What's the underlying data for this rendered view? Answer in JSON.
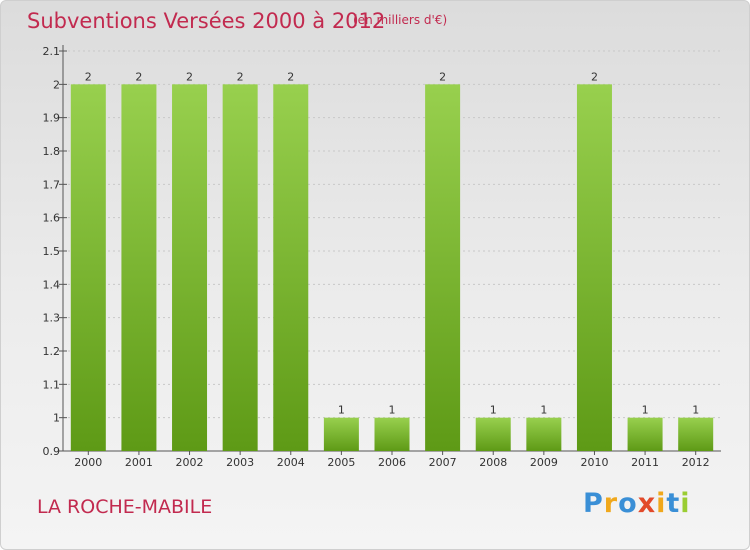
{
  "title": "Subventions Versées 2000 à 2012",
  "subtitle": "(en milliers d'€)",
  "commune": "LA ROCHE-MABILE",
  "brand": {
    "letters": [
      "P",
      "r",
      "o",
      "x",
      "i",
      "t",
      "i"
    ],
    "colors": [
      "#3a8fd6",
      "#f0a81c",
      "#3a8fd6",
      "#e24a2a",
      "#f0a81c",
      "#3a8fd6",
      "#9acd32"
    ]
  },
  "colors": {
    "bar_top": "#98d04e",
    "bar_bottom": "#5e9a16",
    "title": "#c22a4f",
    "axis": "#555555",
    "grid": "#c8c8c8"
  },
  "chart_data": {
    "type": "bar",
    "title": "Subventions Versées 2000 à 2012",
    "subtitle": "(en milliers d'€)",
    "categories": [
      "2000",
      "2001",
      "2002",
      "2003",
      "2004",
      "2005",
      "2006",
      "2007",
      "2008",
      "2009",
      "2010",
      "2011",
      "2012"
    ],
    "values": [
      2,
      2,
      2,
      2,
      2,
      1,
      1,
      2,
      1,
      1,
      2,
      1,
      1
    ],
    "value_labels": [
      "2",
      "2",
      "2",
      "2",
      "2",
      "1",
      "1",
      "2",
      "1",
      "1",
      "2",
      "1",
      "1"
    ],
    "yticks": [
      0.9,
      1,
      1.1,
      1.2,
      1.3,
      1.4,
      1.5,
      1.6,
      1.7,
      1.8,
      1.9,
      2,
      2.1
    ],
    "ytick_labels": [
      "0.9",
      "1",
      "1.1",
      "1.2",
      "1.3",
      "1.4",
      "1.5",
      "1.6",
      "1.7",
      "1.8",
      "1.9",
      "2",
      "2.1"
    ],
    "ylim": [
      0.9,
      2.1
    ],
    "xlabel": "",
    "ylabel": "",
    "grid": true
  }
}
